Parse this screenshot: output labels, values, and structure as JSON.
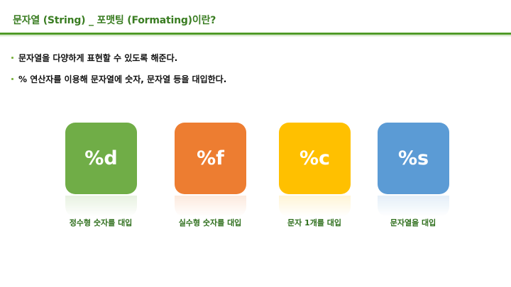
{
  "title": "문자열 (String) _ 포맷팅 (Formating)이란?",
  "bullets": [
    {
      "text": "문자열을 다양하게 표현할 수 있도록 해준다."
    },
    {
      "text": "% 연산자를 이용해 문자열에 숫자, 문자열 등을 대입한다."
    }
  ],
  "cards": [
    {
      "symbol": "%d",
      "caption": "정수형 숫자를 대입",
      "color": "#70ad47"
    },
    {
      "symbol": "%f",
      "caption": "실수형 숫자를 대입",
      "color": "#ed7d31"
    },
    {
      "symbol": "%c",
      "caption": "문자 1개를 대입",
      "color": "#ffc000"
    },
    {
      "symbol": "%s",
      "caption": "문자열을 대입",
      "color": "#5b9bd5"
    }
  ]
}
